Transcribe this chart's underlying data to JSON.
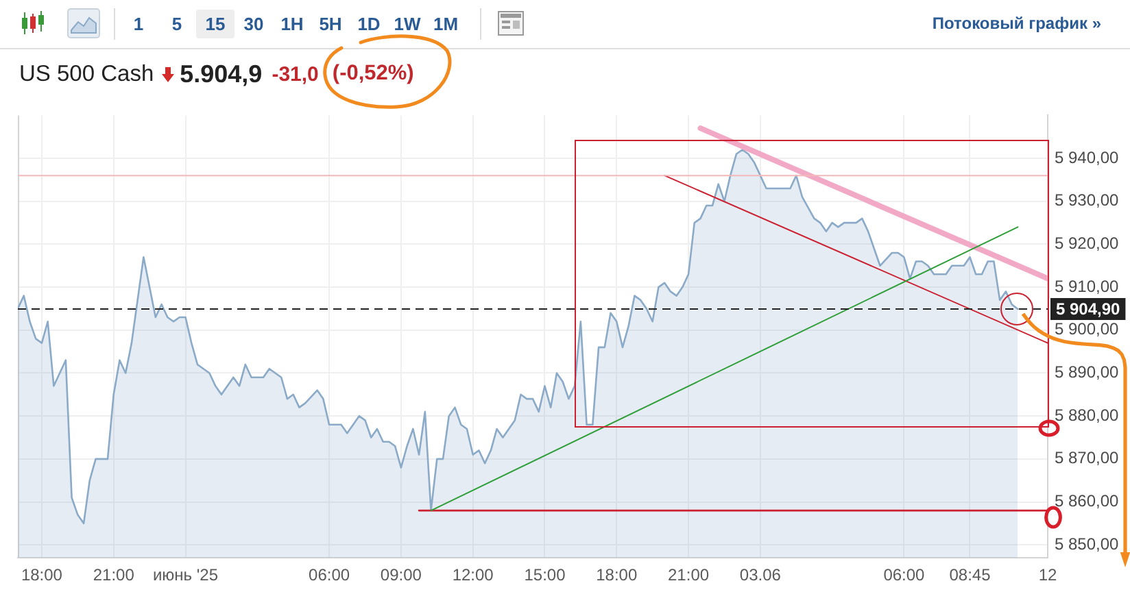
{
  "chart_data": {
    "type": "area",
    "title": "US 500 Cash",
    "subtitle": "5.904,9",
    "annotations": [
      "-31,0",
      "(-0,52%)",
      "1 5 15 30 1H 5H 1D 1W 1M",
      "Потоковый график »"
    ],
    "series": [
      {
        "color": "#8aaac8",
        "x": [
          "2025-06-01T17:00",
          "2025-06-01T17:15",
          "2025-06-01T17:30",
          "2025-06-01T17:45",
          "2025-06-01T18:00",
          "2025-06-01T18:15",
          "2025-06-01T18:30",
          "2025-06-01T18:45",
          "2025-06-01T19:00",
          "2025-06-01T19:15",
          "2025-06-01T19:30",
          "2025-06-01T19:45",
          "2025-06-01T20:00",
          "2025-06-01T20:15",
          "2025-06-01T20:30",
          "2025-06-01T20:45",
          "2025-06-01T21:00",
          "2025-06-01T21:15",
          "2025-06-01T21:30",
          "2025-06-01T21:45",
          "2025-06-01T22:15",
          "2025-06-01T22:30",
          "2025-06-01T22:45",
          "2025-06-01T23:00",
          "2025-06-01T23:15",
          "2025-06-01T23:30",
          "2025-06-01T23:45",
          "2025-06-02T00:00",
          "2025-06-02T00:15",
          "2025-06-02T00:30",
          "2025-06-02T00:45",
          "2025-06-02T01:00",
          "2025-06-02T01:15",
          "2025-06-02T01:30",
          "2025-06-02T02:00",
          "2025-06-02T02:15",
          "2025-06-02T02:30",
          "2025-06-02T02:45",
          "2025-06-02T03:00",
          "2025-06-02T03:15",
          "2025-06-02T03:30",
          "2025-06-02T04:00",
          "2025-06-02T04:15",
          "2025-06-02T04:30",
          "2025-06-02T04:45",
          "2025-06-02T05:00",
          "2025-06-02T05:30",
          "2025-06-02T05:45",
          "2025-06-02T06:00",
          "2025-06-02T06:15",
          "2025-06-02T06:30",
          "2025-06-02T06:45",
          "2025-06-02T07:00",
          "2025-06-02T07:15",
          "2025-06-02T07:30",
          "2025-06-02T07:45",
          "2025-06-02T08:00",
          "2025-06-02T08:15",
          "2025-06-02T08:30",
          "2025-06-02T08:45",
          "2025-06-02T09:00",
          "2025-06-02T09:15",
          "2025-06-02T09:30",
          "2025-06-02T09:45",
          "2025-06-02T10:00",
          "2025-06-02T10:15",
          "2025-06-02T10:30",
          "2025-06-02T10:45",
          "2025-06-02T11:00",
          "2025-06-02T11:15",
          "2025-06-02T11:30",
          "2025-06-02T11:45",
          "2025-06-02T12:00",
          "2025-06-02T12:15",
          "2025-06-02T12:30",
          "2025-06-02T12:45",
          "2025-06-02T13:00",
          "2025-06-02T13:15",
          "2025-06-02T13:30",
          "2025-06-02T13:45",
          "2025-06-02T14:00",
          "2025-06-02T14:15",
          "2025-06-02T14:30",
          "2025-06-02T14:45",
          "2025-06-02T15:00",
          "2025-06-02T15:15",
          "2025-06-02T15:30",
          "2025-06-02T15:45",
          "2025-06-02T16:00",
          "2025-06-02T16:15",
          "2025-06-02T16:30",
          "2025-06-02T16:45",
          "2025-06-02T17:00",
          "2025-06-02T17:15",
          "2025-06-02T17:30",
          "2025-06-02T17:45",
          "2025-06-02T18:00",
          "2025-06-02T18:15",
          "2025-06-02T18:30",
          "2025-06-02T18:45",
          "2025-06-02T19:00",
          "2025-06-02T19:15",
          "2025-06-02T19:30",
          "2025-06-02T19:45",
          "2025-06-02T20:00",
          "2025-06-02T20:15",
          "2025-06-02T20:30",
          "2025-06-02T20:45",
          "2025-06-02T21:00",
          "2025-06-02T21:15",
          "2025-06-02T21:30",
          "2025-06-02T21:45",
          "2025-06-02T22:00",
          "2025-06-02T22:15",
          "2025-06-02T22:30",
          "2025-06-02T22:45",
          "2025-06-02T23:00",
          "2025-06-02T23:15",
          "2025-06-02T23:30",
          "2025-06-02T23:45",
          "2025-06-03T00:00",
          "2025-06-03T00:15",
          "2025-06-03T00:45",
          "2025-06-03T01:00",
          "2025-06-03T01:15",
          "2025-06-03T01:30",
          "2025-06-03T01:45",
          "2025-06-03T02:15",
          "2025-06-03T02:30",
          "2025-06-03T02:45",
          "2025-06-03T03:00",
          "2025-06-03T03:15",
          "2025-06-03T03:30",
          "2025-06-03T04:00",
          "2025-06-03T04:15",
          "2025-06-03T04:30",
          "2025-06-03T04:45",
          "2025-06-03T05:00",
          "2025-06-03T05:30",
          "2025-06-03T05:45",
          "2025-06-03T06:00",
          "2025-06-03T06:15",
          "2025-06-03T06:30",
          "2025-06-03T06:45",
          "2025-06-03T07:00",
          "2025-06-03T07:15",
          "2025-06-03T07:30",
          "2025-06-03T07:45",
          "2025-06-03T08:00",
          "2025-06-03T08:15",
          "2025-06-03T08:30",
          "2025-06-03T08:45",
          "2025-06-03T09:00",
          "2025-06-03T09:15",
          "2025-06-03T09:30",
          "2025-06-03T09:45",
          "2025-06-03T10:00",
          "2025-06-03T10:15",
          "2025-06-03T10:30",
          "2025-06-03T10:45"
        ],
        "values": [
          5905,
          5908,
          5902,
          5898,
          5897,
          5902,
          5887,
          5890,
          5893,
          5861,
          5857,
          5855,
          5865,
          5870,
          5870,
          5870,
          5885,
          5893,
          5890,
          5897,
          5917,
          5910,
          5903,
          5906,
          5903,
          5902,
          5903,
          5903,
          5897,
          5892,
          5891,
          5890,
          5887,
          5885,
          5889,
          5887,
          5892,
          5889,
          5889,
          5889,
          5891,
          5889,
          5884,
          5885,
          5882,
          5883,
          5886,
          5884,
          5878,
          5878,
          5878,
          5876,
          5878,
          5880,
          5879,
          5875,
          5877,
          5874,
          5874,
          5873,
          5868,
          5873,
          5877,
          5871,
          5881,
          5858,
          5870,
          5870,
          5880,
          5882,
          5878,
          5877,
          5871,
          5872,
          5869,
          5872,
          5877,
          5875,
          5877,
          5879,
          5885,
          5884,
          5884,
          5881,
          5887,
          5882,
          5890,
          5888,
          5884,
          5887,
          5902,
          5878,
          5878,
          5896,
          5896,
          5904,
          5902,
          5896,
          5901,
          5908,
          5907,
          5905,
          5902,
          5910,
          5911,
          5909,
          5908,
          5910,
          5913,
          5925,
          5926,
          5929,
          5929,
          5934,
          5930,
          5936,
          5941,
          5942,
          5941,
          5939,
          5936,
          5933,
          5933,
          5933,
          5933,
          5936,
          5931,
          5926,
          5925,
          5923,
          5925,
          5924,
          5925,
          5925,
          5926,
          5923,
          5919,
          5915,
          5918,
          5918,
          5917,
          5912,
          5916,
          5916,
          5915,
          5913,
          5913,
          5913,
          5915,
          5915,
          5915,
          5917,
          5913,
          5913,
          5916,
          5916,
          5907,
          5909,
          5906,
          5904.9
        ]
      },
      {
        "type": "line",
        "color": "#2e9e38",
        "x": [
          "2025-06-02T10:15",
          "2025-06-03T10:45"
        ],
        "values": [
          5858,
          5924
        ]
      },
      {
        "type": "line",
        "color": "#f2a9c6",
        "x": [
          "2025-06-02T21:30",
          "2025-06-03T12:00"
        ],
        "values": [
          5947,
          5912
        ]
      },
      {
        "type": "line",
        "color": "#cc2030",
        "x": [
          "2025-06-02T20:00",
          "2025-06-03T12:00"
        ],
        "values": [
          5936,
          5897
        ]
      },
      {
        "type": "line",
        "color": "#cc2030",
        "x": [
          "2025-06-02T09:45",
          "2025-06-03T12:00"
        ],
        "values": [
          5858,
          5858
        ]
      }
    ],
    "xlim": [
      "2025-06-01T17:00",
      "2025-06-03T12:00"
    ],
    "xticks": [
      {
        "value": "2025-06-01T18:00",
        "label": "18:00"
      },
      {
        "value": "2025-06-01T21:00",
        "label": "21:00"
      },
      {
        "value": "2025-06-02T00:00",
        "label": "июнь '25"
      },
      {
        "value": "2025-06-02T06:00",
        "label": "06:00"
      },
      {
        "value": "2025-06-02T09:00",
        "label": "09:00"
      },
      {
        "value": "2025-06-02T12:00",
        "label": "12:00"
      },
      {
        "value": "2025-06-02T15:00",
        "label": "15:00"
      },
      {
        "value": "2025-06-02T18:00",
        "label": "18:00"
      },
      {
        "value": "2025-06-02T21:00",
        "label": "21:00"
      },
      {
        "value": "2025-06-03T00:00",
        "label": "03.06"
      },
      {
        "value": "2025-06-03T06:00",
        "label": "06:00"
      },
      {
        "value": "2025-06-03T08:45",
        "label": "08:45"
      },
      {
        "value": "2025-06-03T12:00",
        "label": "12"
      }
    ],
    "ylim": [
      5847,
      5950
    ],
    "yticks": [
      {
        "value": 5850,
        "label": "5 850,00"
      },
      {
        "value": 5860,
        "label": "5 860,00"
      },
      {
        "value": 5870,
        "label": "5 870,00"
      },
      {
        "value": 5880,
        "label": "5 880,00"
      },
      {
        "value": 5890,
        "label": "5 890,00"
      },
      {
        "value": 5900,
        "label": "5 900,00"
      },
      {
        "value": 5910,
        "label": "5 910,00"
      },
      {
        "value": 5920,
        "label": "5 920,00"
      },
      {
        "value": 5930,
        "label": "5 930,00"
      },
      {
        "value": 5940,
        "label": "5 940,00"
      }
    ],
    "ref_lines": [
      {
        "axis": "y",
        "value": 5936,
        "color": "#f5b8b8"
      },
      {
        "axis": "y",
        "value": 5904.9,
        "label": "5 904,90",
        "color": "#222222",
        "line_style": "dashed"
      }
    ],
    "grid": true
  }
}
